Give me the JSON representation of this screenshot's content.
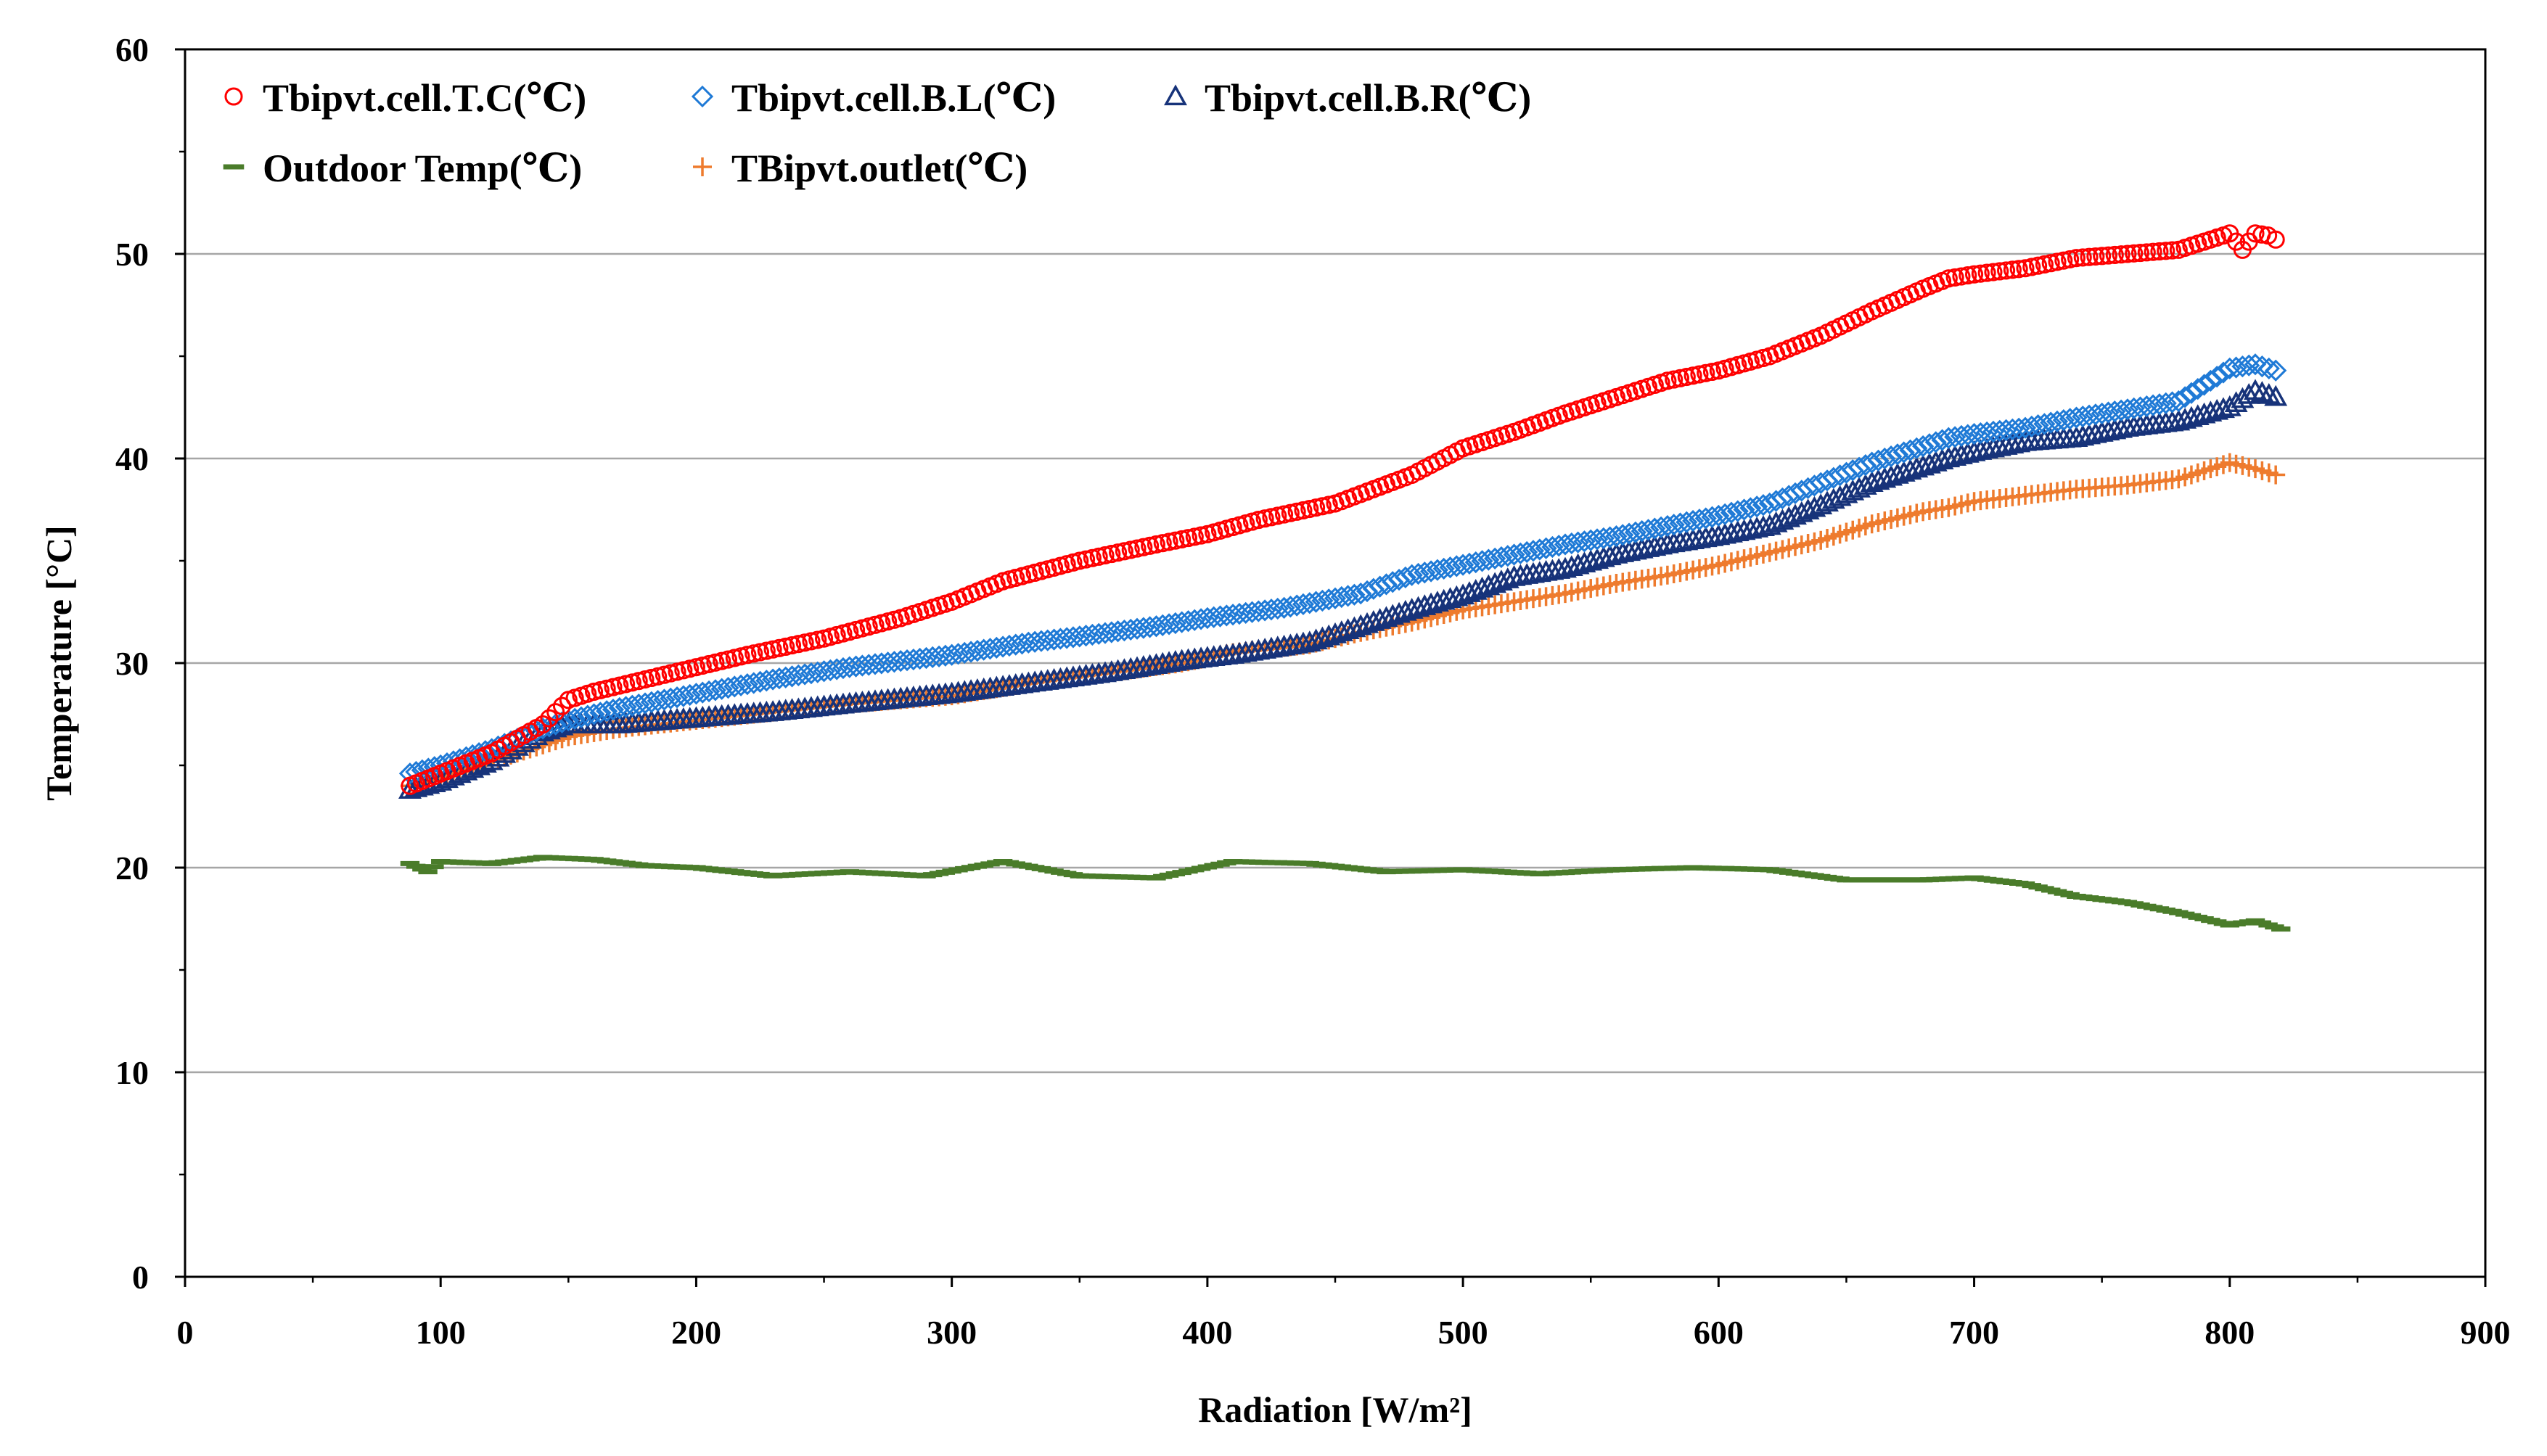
{
  "chart_data": {
    "type": "scatter",
    "title": "",
    "xlabel": "Radiation [W/m²]",
    "ylabel": "Temperature [°C]",
    "xlim": [
      0,
      900
    ],
    "ylim": [
      0,
      60
    ],
    "xticks": [
      0,
      100,
      200,
      300,
      400,
      500,
      600,
      700,
      800,
      900
    ],
    "yticks": [
      0,
      10,
      20,
      30,
      40,
      50,
      60
    ],
    "grid": "horizontal",
    "legend_position": "top-left",
    "series": [
      {
        "name": "Tbipvt.cell.T.C(℃)",
        "marker": "circle",
        "color": "#ff0000",
        "x": [
          88,
          100,
          120,
          140,
          150,
          160,
          180,
          200,
          220,
          250,
          280,
          300,
          320,
          350,
          380,
          400,
          420,
          450,
          480,
          500,
          520,
          540,
          560,
          580,
          600,
          620,
          640,
          660,
          680,
          690,
          700,
          720,
          740,
          760,
          780,
          790,
          800,
          805,
          810,
          815,
          818
        ],
        "y": [
          24.0,
          24.6,
          25.6,
          27.0,
          28.2,
          28.6,
          29.2,
          29.8,
          30.4,
          31.2,
          32.2,
          33.0,
          34.0,
          35.0,
          35.8,
          36.3,
          37.0,
          37.8,
          39.2,
          40.5,
          41.3,
          42.2,
          43.0,
          43.8,
          44.3,
          45.0,
          46.0,
          47.2,
          48.3,
          48.8,
          49.0,
          49.3,
          49.8,
          50.0,
          50.2,
          50.6,
          51.0,
          50.2,
          51.0,
          50.9,
          50.7
        ]
      },
      {
        "name": "Tbipvt.cell.B.L(℃)",
        "marker": "diamond",
        "color": "#1f7ad6",
        "x": [
          88,
          100,
          120,
          140,
          150,
          170,
          200,
          230,
          260,
          300,
          330,
          350,
          380,
          400,
          430,
          460,
          480,
          500,
          520,
          540,
          560,
          580,
          600,
          620,
          640,
          660,
          680,
          690,
          700,
          720,
          740,
          760,
          780,
          790,
          800,
          810,
          818
        ],
        "y": [
          24.6,
          25.0,
          25.8,
          26.8,
          27.2,
          27.8,
          28.5,
          29.2,
          29.8,
          30.4,
          31.0,
          31.3,
          31.8,
          32.2,
          32.7,
          33.4,
          34.3,
          34.8,
          35.3,
          35.8,
          36.2,
          36.7,
          37.2,
          37.8,
          38.8,
          39.8,
          40.6,
          41.0,
          41.2,
          41.5,
          42.0,
          42.4,
          42.8,
          43.6,
          44.4,
          44.6,
          44.3
        ]
      },
      {
        "name": "Tbipvt.cell.B.R(℃)",
        "marker": "triangle",
        "color": "#17337a",
        "x": [
          88,
          100,
          120,
          140,
          150,
          170,
          200,
          230,
          260,
          300,
          330,
          360,
          390,
          410,
          440,
          460,
          480,
          500,
          520,
          540,
          560,
          580,
          600,
          620,
          640,
          660,
          680,
          690,
          700,
          720,
          740,
          760,
          780,
          800,
          810,
          818
        ],
        "y": [
          23.8,
          24.2,
          25.2,
          26.6,
          27.0,
          27.0,
          27.3,
          27.6,
          28.0,
          28.5,
          29.0,
          29.5,
          30.1,
          30.4,
          31.0,
          31.8,
          32.6,
          33.3,
          34.2,
          34.6,
          35.3,
          35.8,
          36.2,
          36.7,
          37.7,
          38.8,
          39.6,
          40.0,
          40.3,
          40.8,
          41.0,
          41.5,
          41.8,
          42.5,
          43.3,
          43.0
        ]
      },
      {
        "name": "Outdoor Temp(℃)",
        "marker": "dash",
        "color": "#4a7c2a",
        "x": [
          88,
          95,
          100,
          120,
          140,
          160,
          180,
          200,
          230,
          260,
          290,
          320,
          350,
          380,
          410,
          440,
          470,
          500,
          530,
          560,
          590,
          620,
          650,
          680,
          700,
          720,
          740,
          760,
          780,
          800,
          810,
          820
        ],
        "y": [
          20.2,
          19.8,
          20.3,
          20.2,
          20.5,
          20.4,
          20.1,
          20.0,
          19.6,
          19.8,
          19.6,
          20.3,
          19.6,
          19.5,
          20.3,
          20.2,
          19.8,
          19.9,
          19.7,
          19.9,
          20.0,
          19.9,
          19.4,
          19.4,
          19.5,
          19.2,
          18.6,
          18.3,
          17.8,
          17.2,
          17.4,
          17.0
        ]
      },
      {
        "name": "TBipvt.outlet(℃)",
        "marker": "plus",
        "color": "#ee7b2e",
        "x": [
          88,
          100,
          120,
          140,
          150,
          170,
          200,
          230,
          260,
          300,
          330,
          360,
          390,
          410,
          440,
          460,
          480,
          500,
          520,
          540,
          560,
          580,
          600,
          620,
          640,
          660,
          680,
          690,
          700,
          720,
          740,
          760,
          780,
          790,
          800,
          810,
          818
        ],
        "y": [
          24.0,
          24.4,
          25.2,
          26.0,
          26.4,
          26.8,
          27.2,
          27.6,
          28.0,
          28.4,
          29.0,
          29.5,
          30.0,
          30.5,
          30.9,
          31.5,
          32.0,
          32.6,
          33.0,
          33.4,
          33.9,
          34.3,
          34.8,
          35.4,
          36.0,
          36.8,
          37.4,
          37.6,
          37.9,
          38.2,
          38.5,
          38.7,
          39.0,
          39.4,
          39.8,
          39.5,
          39.2
        ]
      }
    ]
  }
}
